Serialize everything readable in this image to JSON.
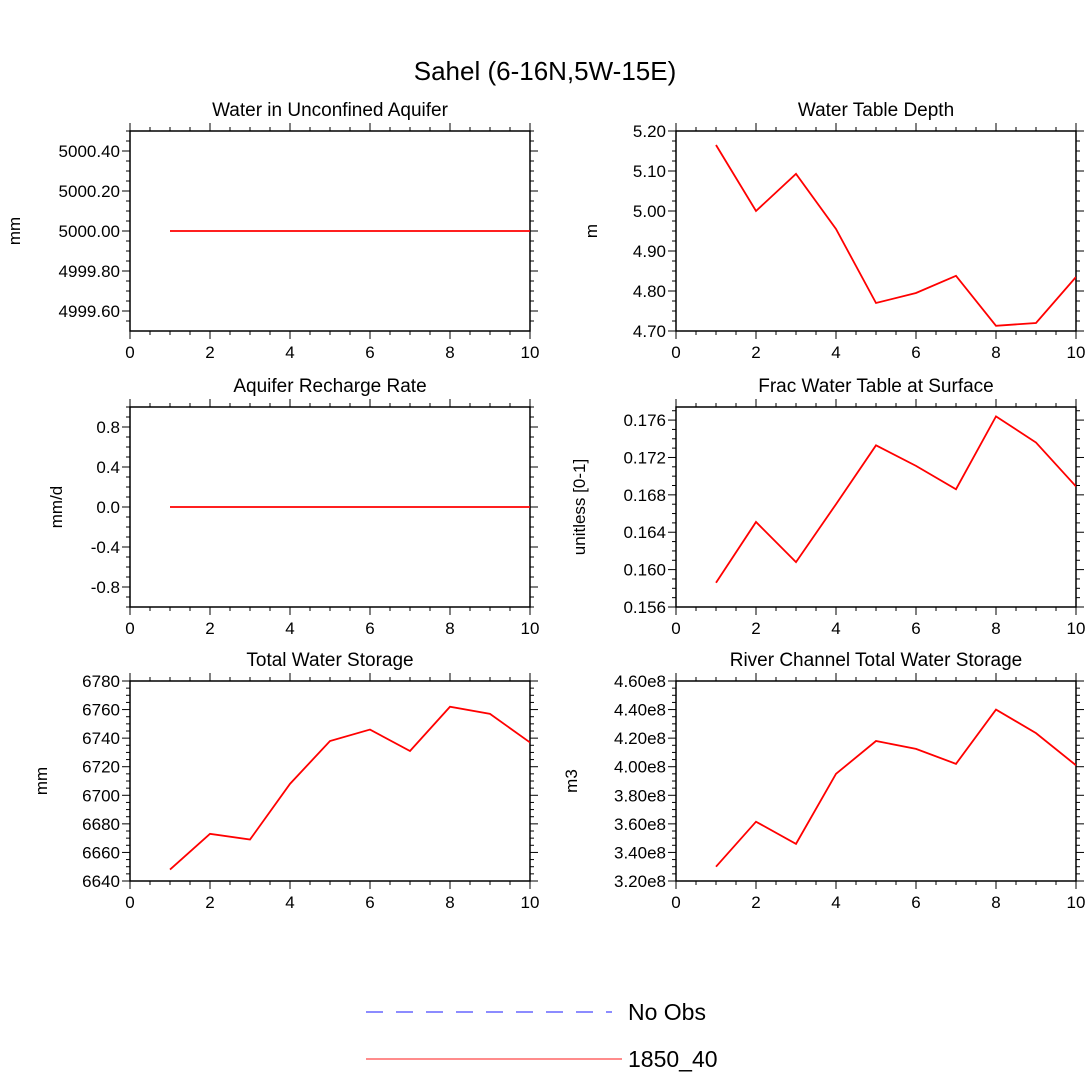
{
  "figure_title": "Sahel (6-16N,5W-15E)",
  "colors": {
    "series": "#ff0000",
    "obs": "#6666ff",
    "legend_series": "#ff6666"
  },
  "legend": {
    "items": [
      "No Obs",
      "1850_40"
    ]
  },
  "chart_data": [
    {
      "type": "line",
      "title": "Water in Unconfined Aquifer",
      "ylabel": "mm",
      "xlim": [
        0,
        10
      ],
      "ylim": [
        4999.5,
        5000.5
      ],
      "x_ticks": [
        "0",
        "2",
        "4",
        "6",
        "8",
        "10"
      ],
      "y_ticks": [
        "4999.60",
        "4999.80",
        "5000.00",
        "5000.20",
        "5000.40"
      ],
      "y_tick_values": [
        4999.6,
        4999.8,
        5000.0,
        5000.2,
        5000.4
      ],
      "series": [
        {
          "name": "1850_40",
          "x": [
            1,
            2,
            3,
            4,
            5,
            6,
            7,
            8,
            9,
            10
          ],
          "values": [
            5000,
            5000,
            5000,
            5000,
            5000,
            5000,
            5000,
            5000,
            5000,
            5000
          ]
        }
      ]
    },
    {
      "type": "line",
      "title": "Water Table Depth",
      "ylabel": "m",
      "xlim": [
        0,
        10
      ],
      "ylim": [
        4.7,
        5.2
      ],
      "x_ticks": [
        "0",
        "2",
        "4",
        "6",
        "8",
        "10"
      ],
      "y_ticks": [
        "4.70",
        "4.80",
        "4.90",
        "5.00",
        "5.10",
        "5.20"
      ],
      "y_tick_values": [
        4.7,
        4.8,
        4.9,
        5.0,
        5.1,
        5.2
      ],
      "series": [
        {
          "name": "1850_40",
          "x": [
            1,
            2,
            3,
            4,
            5,
            6,
            7,
            8,
            9,
            10
          ],
          "values": [
            5.165,
            5.0,
            5.093,
            4.955,
            4.77,
            4.795,
            4.838,
            4.713,
            4.72,
            4.835
          ]
        }
      ]
    },
    {
      "type": "line",
      "title": "Aquifer Recharge Rate",
      "ylabel": "mm/d",
      "xlim": [
        0,
        10
      ],
      "ylim": [
        -1.0,
        1.0
      ],
      "x_ticks": [
        "0",
        "2",
        "4",
        "6",
        "8",
        "10"
      ],
      "y_ticks": [
        "-0.8",
        "-0.4",
        "0.0",
        "0.4",
        "0.8"
      ],
      "y_tick_values": [
        -0.8,
        -0.4,
        0.0,
        0.4,
        0.8
      ],
      "series": [
        {
          "name": "1850_40",
          "x": [
            1,
            2,
            3,
            4,
            5,
            6,
            7,
            8,
            9,
            10
          ],
          "values": [
            0,
            0,
            0,
            0,
            0,
            0,
            0,
            0,
            0,
            0
          ]
        }
      ]
    },
    {
      "type": "line",
      "title": "Frac Water Table at Surface",
      "ylabel": "unitless [0-1]",
      "xlim": [
        0,
        10
      ],
      "ylim": [
        0.156,
        0.1774
      ],
      "x_ticks": [
        "0",
        "2",
        "4",
        "6",
        "8",
        "10"
      ],
      "y_ticks": [
        "0.156",
        "0.160",
        "0.164",
        "0.168",
        "0.172",
        "0.176"
      ],
      "y_tick_values": [
        0.156,
        0.16,
        0.164,
        0.168,
        0.172,
        0.176
      ],
      "series": [
        {
          "name": "1850_40",
          "x": [
            1,
            2,
            3,
            4,
            5,
            6,
            7,
            8,
            9,
            10
          ],
          "values": [
            0.1586,
            0.1651,
            0.1608,
            0.167,
            0.1733,
            0.1711,
            0.1686,
            0.1764,
            0.1736,
            0.1689
          ]
        }
      ]
    },
    {
      "type": "line",
      "title": "Total Water Storage",
      "ylabel": "mm",
      "xlim": [
        0,
        10
      ],
      "ylim": [
        6640,
        6780
      ],
      "x_ticks": [
        "0",
        "2",
        "4",
        "6",
        "8",
        "10"
      ],
      "y_ticks": [
        "6640",
        "6660",
        "6680",
        "6700",
        "6720",
        "6740",
        "6760",
        "6780"
      ],
      "y_tick_values": [
        6640,
        6660,
        6680,
        6700,
        6720,
        6740,
        6760,
        6780
      ],
      "series": [
        {
          "name": "1850_40",
          "x": [
            1,
            2,
            3,
            4,
            5,
            6,
            7,
            8,
            9,
            10
          ],
          "values": [
            6648,
            6673,
            6669,
            6708,
            6738,
            6746,
            6731,
            6762,
            6757,
            6737
          ]
        }
      ]
    },
    {
      "type": "line",
      "title": "River Channel Total Water Storage",
      "ylabel": "m3",
      "xlim": [
        0,
        10
      ],
      "ylim": [
        320000000,
        460000000
      ],
      "x_ticks": [
        "0",
        "2",
        "4",
        "6",
        "8",
        "10"
      ],
      "y_ticks": [
        "3.20e8",
        "3.40e8",
        "3.60e8",
        "3.80e8",
        "4.00e8",
        "4.20e8",
        "4.40e8",
        "4.60e8"
      ],
      "y_tick_values": [
        320000000,
        340000000,
        360000000,
        380000000,
        400000000,
        420000000,
        440000000,
        460000000
      ],
      "series": [
        {
          "name": "1850_40",
          "x": [
            1,
            2,
            3,
            4,
            5,
            6,
            7,
            8,
            9,
            10
          ],
          "values": [
            330000000,
            361500000,
            346000000,
            395000000,
            418000000,
            412500000,
            402000000,
            440000000,
            423500000,
            401000000
          ]
        }
      ]
    }
  ]
}
